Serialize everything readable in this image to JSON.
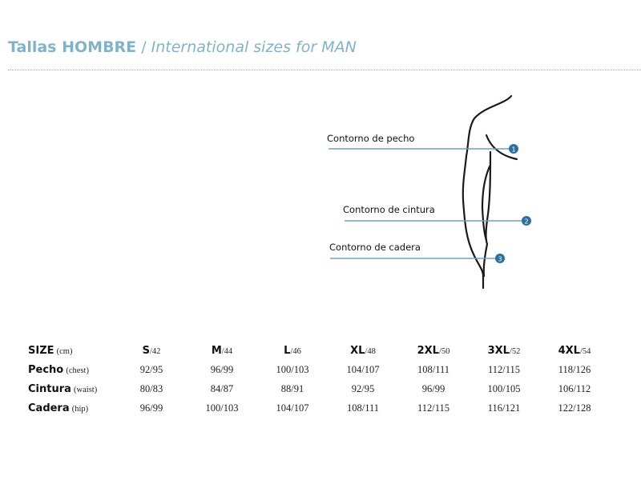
{
  "header": {
    "title_bold": "Tallas HOMBRE",
    "separator": " / ",
    "title_italic": "International sizes for MAN"
  },
  "figure": {
    "labels": [
      {
        "text": "Contorno de pecho",
        "marker": "1"
      },
      {
        "text": "Contorno de cintura",
        "marker": "2"
      },
      {
        "text": "Contorno de cadera",
        "marker": "3"
      }
    ],
    "accent_color": "#2f6f9a",
    "line_color": "#6aa3c2"
  },
  "table": {
    "header": {
      "label": "SIZE",
      "unit": "(cm)"
    },
    "sizes": [
      {
        "name": "S",
        "eu": "/42"
      },
      {
        "name": "M",
        "eu": "/44"
      },
      {
        "name": "L",
        "eu": "/46"
      },
      {
        "name": "XL",
        "eu": "/48"
      },
      {
        "name": "2XL",
        "eu": "/50"
      },
      {
        "name": "3XL",
        "eu": "/52"
      },
      {
        "name": "4XL",
        "eu": "/54"
      }
    ],
    "rows": [
      {
        "label": "Pecho",
        "sub": "(chest)",
        "values": [
          "92/95",
          "96/99",
          "100/103",
          "104/107",
          "108/111",
          "112/115",
          "118/126"
        ]
      },
      {
        "label": "Cintura",
        "sub": "(waist)",
        "values": [
          "80/83",
          "84/87",
          "88/91",
          "92/95",
          "96/99",
          "100/105",
          "106/112"
        ]
      },
      {
        "label": "Cadera",
        "sub": "(hip)",
        "values": [
          "96/99",
          "100/103",
          "104/107",
          "108/111",
          "112/115",
          "116/121",
          "122/128"
        ]
      }
    ]
  }
}
